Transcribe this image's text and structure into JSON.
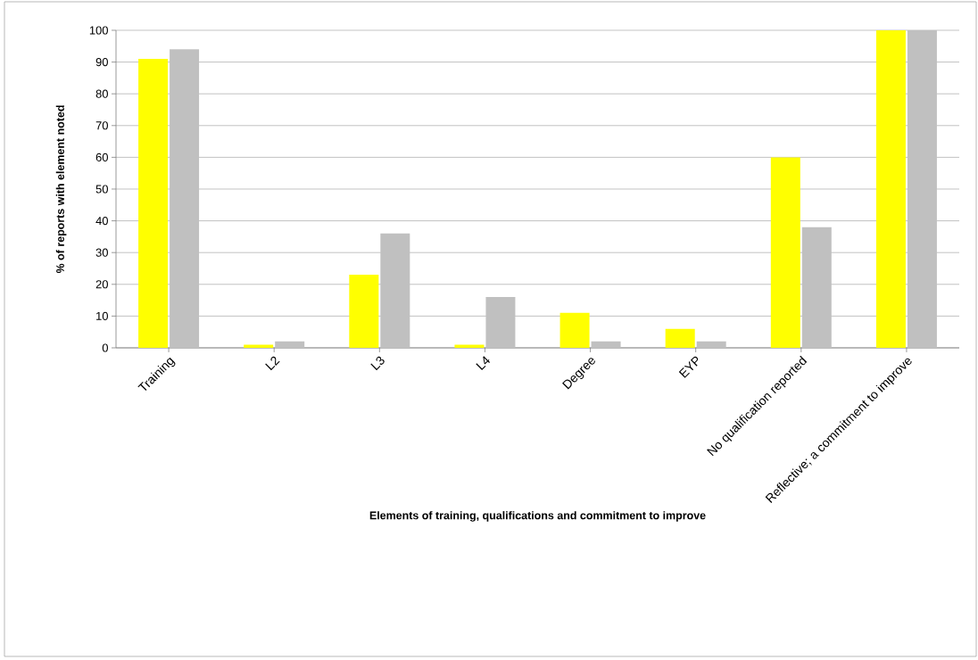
{
  "chart_data": {
    "type": "bar",
    "xlabel": "Elements  of training, qualifications and commitment to improve",
    "ylabel": "% of reports with element noted",
    "categories": [
      "Training",
      "L2",
      "L3",
      "L4",
      "Degree",
      "EYP",
      "No qualification reported",
      "Reflective; a commitment to improve"
    ],
    "series": [
      {
        "color": "#ffff00",
        "values": [
          91,
          1,
          23,
          1,
          11,
          6,
          60,
          100
        ]
      },
      {
        "color": "#c0c0c0",
        "values": [
          94,
          2,
          36,
          16,
          2,
          2,
          38,
          100
        ]
      }
    ],
    "ylim": [
      0,
      100
    ],
    "yticks": [
      0,
      10,
      20,
      30,
      40,
      50,
      60,
      70,
      80,
      90,
      100
    ],
    "grid": "y"
  }
}
